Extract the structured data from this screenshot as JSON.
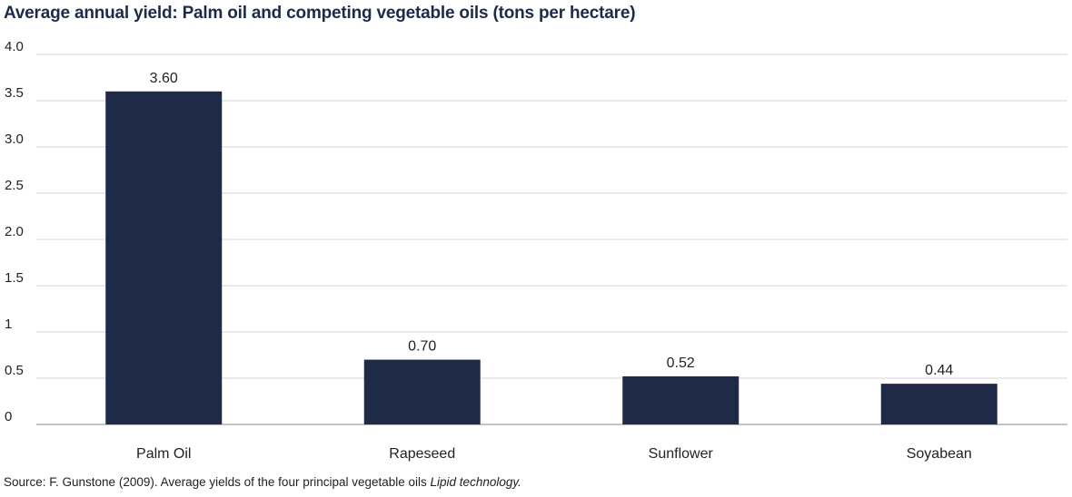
{
  "chart_data": {
    "type": "bar",
    "title": "Average annual yield: Palm oil and competing vegetable oils (tons per hectare)",
    "categories": [
      "Palm Oil",
      "Rapeseed",
      "Sunflower",
      "Soyabean"
    ],
    "values": [
      3.6,
      0.7,
      0.52,
      0.44
    ],
    "value_labels": [
      "3.60",
      "0.70",
      "0.52",
      "0.44"
    ],
    "ylim": [
      0,
      4.0
    ],
    "yticks": [
      0,
      0.5,
      1,
      1.5,
      2.0,
      2.5,
      3.0,
      3.5,
      4.0
    ],
    "ytick_labels": [
      "0",
      "0.5",
      "1",
      "1.5",
      "2.0",
      "2.5",
      "3.0",
      "3.5",
      "4.0"
    ],
    "grid": true,
    "bar_color": "#1f2a48",
    "grid_color": "#d4d4d4"
  },
  "source": {
    "prefix": "Source: F. Gunstone (2009). Average yields of the four principal vegetable oils ",
    "italic": "Lipid technology."
  }
}
